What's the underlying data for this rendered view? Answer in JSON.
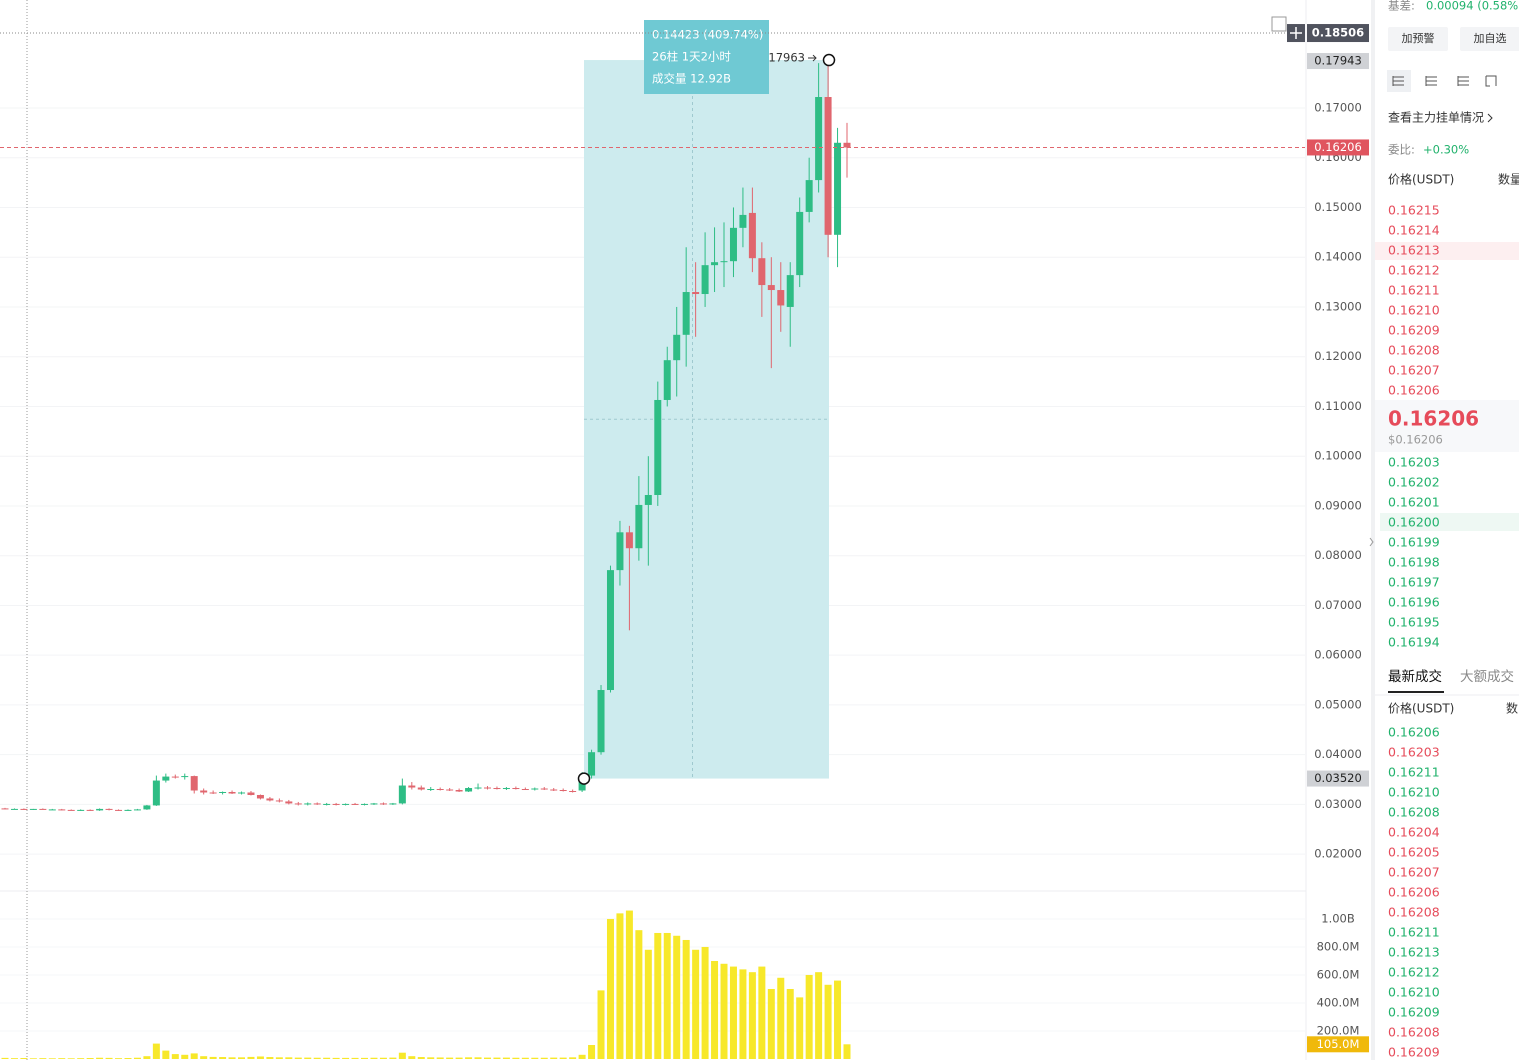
{
  "chart_data": {
    "type": "candlestick",
    "open": [
      0.0292,
      0.0291,
      0.0291,
      0.029,
      0.0291,
      0.029,
      0.029,
      0.0289,
      0.0288,
      0.0289,
      0.0288,
      0.0291,
      0.0289,
      0.0288,
      0.0289,
      0.029,
      0.0298,
      0.0348,
      0.0356,
      0.0355,
      0.0357,
      0.0328,
      0.0324,
      0.0323,
      0.0325,
      0.0322,
      0.0324,
      0.0319,
      0.0312,
      0.0308,
      0.0306,
      0.0302,
      0.03,
      0.0302,
      0.03,
      0.0301,
      0.0299,
      0.0301,
      0.03,
      0.0301,
      0.0302,
      0.03,
      0.0302,
      0.0338,
      0.0334,
      0.033,
      0.0331,
      0.033,
      0.0329,
      0.0326,
      0.0333,
      0.0334,
      0.0333,
      0.0332,
      0.0333,
      0.0331,
      0.033,
      0.0332,
      0.033,
      0.0329,
      0.0327,
      0.0328,
      0.0358,
      0.0405,
      0.053,
      0.0771,
      0.0847,
      0.0815,
      0.0902,
      0.0922,
      0.1113,
      0.1193,
      0.1244,
      0.133,
      0.1326,
      0.1384,
      0.139,
      0.1392,
      0.1459,
      0.1489,
      0.1398,
      0.1344,
      0.1334,
      0.13,
      0.1364,
      0.1491,
      0.1555,
      0.1722,
      0.1445,
      0.163
    ],
    "high": [
      0.0293,
      0.0292,
      0.0292,
      0.0291,
      0.0292,
      0.0291,
      0.0291,
      0.029,
      0.029,
      0.029,
      0.0292,
      0.0292,
      0.029,
      0.029,
      0.0291,
      0.0299,
      0.0358,
      0.0362,
      0.036,
      0.0362,
      0.0358,
      0.0332,
      0.0328,
      0.0326,
      0.0328,
      0.0326,
      0.0327,
      0.032,
      0.0315,
      0.0312,
      0.0309,
      0.0305,
      0.0304,
      0.0304,
      0.0303,
      0.0303,
      0.0302,
      0.0303,
      0.0302,
      0.0303,
      0.0304,
      0.0303,
      0.0352,
      0.0345,
      0.0338,
      0.0335,
      0.0334,
      0.0333,
      0.0332,
      0.0335,
      0.0342,
      0.0337,
      0.0336,
      0.0335,
      0.0336,
      0.0334,
      0.0334,
      0.0335,
      0.0333,
      0.0332,
      0.033,
      0.0365,
      0.041,
      0.054,
      0.078,
      0.087,
      0.086,
      0.096,
      0.1,
      0.115,
      0.122,
      0.13,
      0.142,
      0.139,
      0.145,
      0.146,
      0.147,
      0.15,
      0.154,
      0.154,
      0.143,
      0.14,
      0.139,
      0.139,
      0.152,
      0.16,
      0.179,
      0.17963,
      0.166,
      0.167
    ],
    "low": [
      0.029,
      0.029,
      0.0289,
      0.0289,
      0.029,
      0.0289,
      0.0288,
      0.0288,
      0.0287,
      0.0287,
      0.0287,
      0.0288,
      0.0287,
      0.0287,
      0.0288,
      0.0289,
      0.0297,
      0.0344,
      0.0352,
      0.035,
      0.0322,
      0.032,
      0.0321,
      0.032,
      0.0321,
      0.032,
      0.0318,
      0.031,
      0.0306,
      0.0304,
      0.03,
      0.0298,
      0.0298,
      0.0299,
      0.0298,
      0.0298,
      0.0298,
      0.0299,
      0.0298,
      0.0299,
      0.0299,
      0.0299,
      0.03,
      0.033,
      0.0328,
      0.0327,
      0.0328,
      0.0327,
      0.0325,
      0.0325,
      0.033,
      0.033,
      0.033,
      0.0329,
      0.033,
      0.0329,
      0.0328,
      0.0329,
      0.0327,
      0.0326,
      0.0324,
      0.0325,
      0.0352,
      0.04,
      0.0525,
      0.074,
      0.065,
      0.079,
      0.078,
      0.09,
      0.11,
      0.112,
      0.118,
      0.124,
      0.13,
      0.133,
      0.134,
      0.136,
      0.142,
      0.137,
      0.128,
      0.1177,
      0.125,
      0.122,
      0.134,
      0.147,
      0.153,
      0.14,
      0.138,
      0.156
    ],
    "close": [
      0.0291,
      0.0291,
      0.029,
      0.0291,
      0.029,
      0.029,
      0.0289,
      0.0288,
      0.0289,
      0.0288,
      0.0291,
      0.0289,
      0.0288,
      0.0289,
      0.029,
      0.0298,
      0.0348,
      0.0356,
      0.0355,
      0.0357,
      0.0328,
      0.0324,
      0.0323,
      0.0325,
      0.0322,
      0.0324,
      0.0319,
      0.0312,
      0.0308,
      0.0306,
      0.0302,
      0.03,
      0.0302,
      0.03,
      0.0301,
      0.0299,
      0.0301,
      0.03,
      0.0301,
      0.0302,
      0.03,
      0.0302,
      0.0338,
      0.0334,
      0.033,
      0.0331,
      0.033,
      0.0329,
      0.0326,
      0.0333,
      0.0334,
      0.0333,
      0.0332,
      0.0333,
      0.0331,
      0.033,
      0.0332,
      0.033,
      0.0329,
      0.0327,
      0.0326,
      0.0358,
      0.0405,
      0.053,
      0.0771,
      0.0847,
      0.0815,
      0.0902,
      0.0922,
      0.1113,
      0.1193,
      0.1244,
      0.133,
      0.1326,
      0.1384,
      0.139,
      0.1392,
      0.1459,
      0.1485,
      0.1398,
      0.1344,
      0.1334,
      0.1303,
      0.1364,
      0.1491,
      0.1555,
      0.1722,
      0.1445,
      0.163,
      0.16206
    ],
    "volume": [
      8,
      6,
      7,
      5,
      6,
      5,
      6,
      5,
      6,
      7,
      9,
      8,
      6,
      7,
      9,
      20,
      110,
      60,
      35,
      30,
      40,
      20,
      15,
      14,
      12,
      12,
      15,
      18,
      14,
      12,
      12,
      10,
      10,
      9,
      9,
      8,
      8,
      8,
      8,
      9,
      9,
      10,
      45,
      20,
      14,
      12,
      11,
      10,
      10,
      12,
      12,
      10,
      10,
      10,
      9,
      9,
      9,
      9,
      10,
      10,
      12,
      30,
      100,
      490,
      1000,
      1040,
      1060,
      920,
      780,
      900,
      900,
      880,
      850,
      780,
      800,
      700,
      680,
      660,
      640,
      620,
      660,
      500,
      580,
      500,
      440,
      600,
      620,
      530,
      560,
      105
    ],
    "up_color": "#2ebd85",
    "down_color": "#e0666e",
    "volume_color": "#f7e82a",
    "ylim": [
      0.0128,
      0.1917
    ],
    "yticks": [
      {
        "value": 0.02,
        "label": "0.02000"
      },
      {
        "value": 0.03,
        "label": "0.03000"
      },
      {
        "value": 0.04,
        "label": "0.04000"
      },
      {
        "value": 0.05,
        "label": "0.05000"
      },
      {
        "value": 0.06,
        "label": "0.06000"
      },
      {
        "value": 0.07,
        "label": "0.07000"
      },
      {
        "value": 0.08,
        "label": "0.08000"
      },
      {
        "value": 0.09,
        "label": "0.09000"
      },
      {
        "value": 0.1,
        "label": "0.10000"
      },
      {
        "value": 0.11,
        "label": "0.11000"
      },
      {
        "value": 0.12,
        "label": "0.12000"
      },
      {
        "value": 0.13,
        "label": "0.13000"
      },
      {
        "value": 0.14,
        "label": "0.14000"
      },
      {
        "value": 0.15,
        "label": "0.15000"
      },
      {
        "value": 0.16,
        "label": "0.16000"
      },
      {
        "value": 0.17,
        "label": "0.17000"
      }
    ],
    "grid": true,
    "volume_ylim": [
      0,
      1114
    ],
    "volume_ticks": [
      {
        "value": 200,
        "label": "200.0M"
      },
      {
        "value": 400,
        "label": "400.0M"
      },
      {
        "value": 600,
        "label": "600.0M"
      },
      {
        "value": 800,
        "label": "800.0M"
      },
      {
        "value": 1000,
        "label": "1.00B"
      }
    ],
    "last_price": {
      "value": 0.16206,
      "label": "0.16206"
    },
    "crosshair": {
      "value": 0.18506,
      "label": "0.18506"
    },
    "axis_marks": [
      {
        "value": 0.17943,
        "label": "0.17943"
      },
      {
        "value": 0.0352,
        "label": "0.03520"
      }
    ],
    "volume_mark": {
      "value": 105,
      "label": "105.0M"
    },
    "measure": {
      "high": {
        "value": 0.17963,
        "label": "0.17963"
      },
      "lines": [
        "0.14423 (409.74%)",
        "26柱 1天2小时",
        "成交量 12.92B"
      ]
    }
  },
  "sidebar": {
    "basis_label": "基差:",
    "basis": "0.00094 (0.58%)",
    "buttons": [
      "加预警",
      "加自选"
    ],
    "link": "查看主力挂单情况",
    "ratio_label": "委比:",
    "ratio": "+0.30%",
    "book_headers": [
      "价格(USDT)",
      "数量"
    ],
    "asks": [
      "0.16215",
      "0.16214",
      "0.16213",
      "0.16212",
      "0.16211",
      "0.16210",
      "0.16209",
      "0.16208",
      "0.16207",
      "0.16206"
    ],
    "last": "0.16206",
    "last_usd": "$0.16206",
    "bids": [
      "0.16203",
      "0.16202",
      "0.16201",
      "0.16200",
      "0.16199",
      "0.16198",
      "0.16197",
      "0.16196",
      "0.16195",
      "0.16194"
    ],
    "tabs": [
      "最新成交",
      "大额成交"
    ],
    "trade_headers": [
      "价格(USDT)",
      "数"
    ],
    "trades": [
      {
        "price": "0.16206",
        "color": "green"
      },
      {
        "price": "0.16203",
        "color": "red"
      },
      {
        "price": "0.16211",
        "color": "green"
      },
      {
        "price": "0.16210",
        "color": "green"
      },
      {
        "price": "0.16208",
        "color": "green"
      },
      {
        "price": "0.16204",
        "color": "red"
      },
      {
        "price": "0.16205",
        "color": "red"
      },
      {
        "price": "0.16207",
        "color": "red"
      },
      {
        "price": "0.16206",
        "color": "red"
      },
      {
        "price": "0.16208",
        "color": "red"
      },
      {
        "price": "0.16211",
        "color": "green"
      },
      {
        "price": "0.16213",
        "color": "green"
      },
      {
        "price": "0.16212",
        "color": "green"
      },
      {
        "price": "0.16210",
        "color": "green"
      },
      {
        "price": "0.16209",
        "color": "green"
      },
      {
        "price": "0.16208",
        "color": "red"
      },
      {
        "price": "0.16209",
        "color": "red"
      }
    ]
  }
}
